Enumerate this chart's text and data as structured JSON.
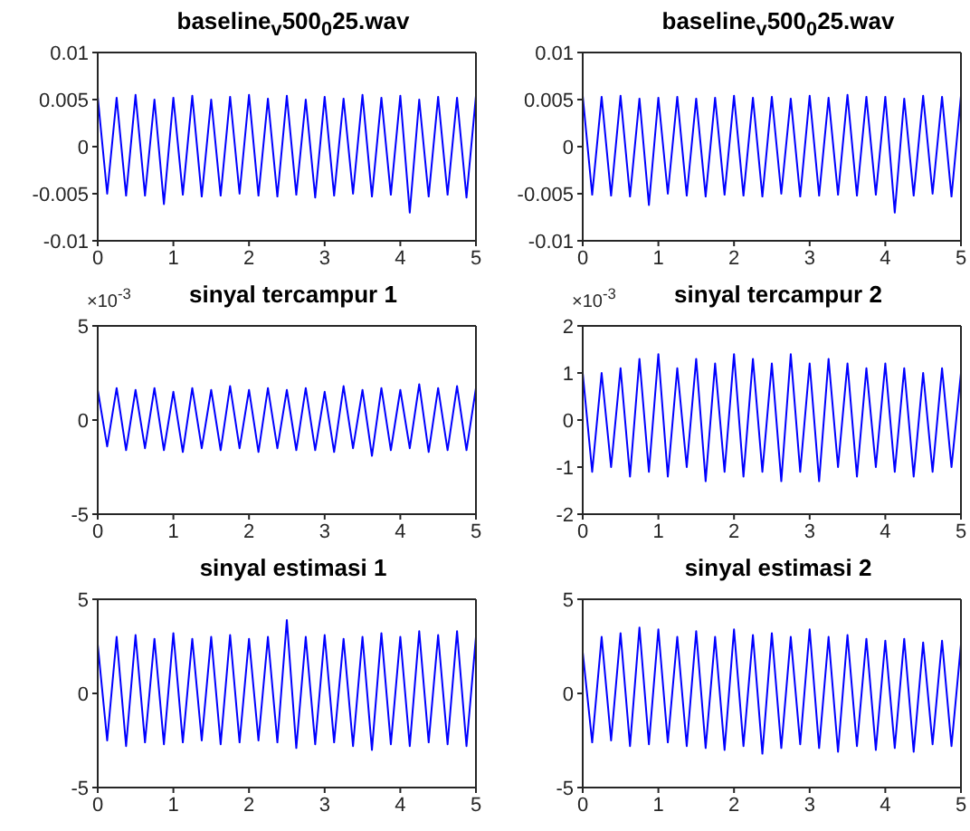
{
  "chart_data": [
    {
      "type": "line",
      "title": "baseline$_{v}$500$_{0}$25.wav",
      "x": [
        0,
        0.125,
        0.25,
        0.375,
        0.5,
        0.625,
        0.75,
        0.875,
        1,
        1.125,
        1.25,
        1.375,
        1.5,
        1.625,
        1.75,
        1.875,
        2,
        2.125,
        2.25,
        2.375,
        2.5,
        2.625,
        2.75,
        2.875,
        3,
        3.125,
        3.25,
        3.375,
        3.5,
        3.625,
        3.75,
        3.875,
        4,
        4.125,
        4.25,
        4.375,
        4.5,
        4.625,
        4.75,
        4.875,
        5
      ],
      "series": [
        {
          "color": "#0000ff",
          "values": [
            0.0053,
            -0.005,
            0.0052,
            -0.0052,
            0.0055,
            -0.0052,
            0.005,
            -0.0061,
            0.0052,
            -0.0051,
            0.0054,
            -0.0053,
            0.005,
            -0.0052,
            0.0053,
            -0.005,
            0.0055,
            -0.0052,
            0.0051,
            -0.0053,
            0.0054,
            -0.0051,
            0.005,
            -0.0054,
            0.0053,
            -0.0052,
            0.0051,
            -0.005,
            0.0055,
            -0.0053,
            0.0052,
            -0.0051,
            0.0054,
            -0.007,
            0.005,
            -0.0053,
            0.0053,
            -0.0051,
            0.0052,
            -0.0054,
            0.0054
          ]
        }
      ],
      "xlim": [
        0,
        5
      ],
      "xticks": [
        0,
        1,
        2,
        3,
        4,
        5
      ],
      "ylim": [
        -0.01,
        0.01
      ],
      "yticks": [
        -0.01,
        -0.005,
        0,
        0.005,
        0.01
      ],
      "grid": false,
      "legend": false,
      "marker": "none",
      "line_style": "solid"
    },
    {
      "type": "line",
      "title": "baseline$_{v}$500$_{0}$25.wav",
      "x": [
        0,
        0.125,
        0.25,
        0.375,
        0.5,
        0.625,
        0.75,
        0.875,
        1,
        1.125,
        1.25,
        1.375,
        1.5,
        1.625,
        1.75,
        1.875,
        2,
        2.125,
        2.25,
        2.375,
        2.5,
        2.625,
        2.75,
        2.875,
        3,
        3.125,
        3.25,
        3.375,
        3.5,
        3.625,
        3.75,
        3.875,
        4,
        4.125,
        4.25,
        4.375,
        4.5,
        4.625,
        4.75,
        4.875,
        5
      ],
      "series": [
        {
          "color": "#0000ff",
          "values": [
            0.0054,
            -0.0051,
            0.0053,
            -0.0052,
            0.0054,
            -0.0053,
            0.0051,
            -0.0062,
            0.0052,
            -0.005,
            0.0053,
            -0.0052,
            0.0051,
            -0.0053,
            0.0052,
            -0.0051,
            0.0054,
            -0.0052,
            0.0052,
            -0.0053,
            0.0053,
            -0.005,
            0.0051,
            -0.0053,
            0.0054,
            -0.0052,
            0.0052,
            -0.0051,
            0.0055,
            -0.0052,
            0.0053,
            -0.0051,
            0.0053,
            -0.007,
            0.0051,
            -0.0052,
            0.0054,
            -0.005,
            0.0053,
            -0.0053,
            0.0054
          ]
        }
      ],
      "xlim": [
        0,
        5
      ],
      "xticks": [
        0,
        1,
        2,
        3,
        4,
        5
      ],
      "ylim": [
        -0.01,
        0.01
      ],
      "yticks": [
        -0.01,
        -0.005,
        0,
        0.005,
        0.01
      ],
      "grid": false,
      "legend": false,
      "marker": "none",
      "line_style": "solid"
    },
    {
      "type": "line",
      "title": "sinyal tercampur 1",
      "annotations": [
        "×10$^{-3}$"
      ],
      "x": [
        0,
        0.125,
        0.25,
        0.375,
        0.5,
        0.625,
        0.75,
        0.875,
        1,
        1.125,
        1.25,
        1.375,
        1.5,
        1.625,
        1.75,
        1.875,
        2,
        2.125,
        2.25,
        2.375,
        2.5,
        2.625,
        2.75,
        2.875,
        3,
        3.125,
        3.25,
        3.375,
        3.5,
        3.625,
        3.75,
        3.875,
        4,
        4.125,
        4.25,
        4.375,
        4.5,
        4.625,
        4.75,
        4.875,
        5
      ],
      "series": [
        {
          "color": "#0000ff",
          "values": [
            1.6,
            -1.4,
            1.7,
            -1.6,
            1.6,
            -1.5,
            1.7,
            -1.6,
            1.5,
            -1.7,
            1.7,
            -1.5,
            1.6,
            -1.6,
            1.8,
            -1.5,
            1.6,
            -1.7,
            1.7,
            -1.5,
            1.6,
            -1.6,
            1.7,
            -1.6,
            1.5,
            -1.7,
            1.8,
            -1.5,
            1.6,
            -1.9,
            1.7,
            -1.6,
            1.6,
            -1.5,
            1.9,
            -1.7,
            1.7,
            -1.6,
            1.8,
            -1.6,
            1.7
          ]
        }
      ],
      "xlim": [
        0,
        5
      ],
      "xticks": [
        0,
        1,
        2,
        3,
        4,
        5
      ],
      "ylim": [
        -5,
        5
      ],
      "yticks": [
        -5,
        0,
        5
      ],
      "grid": false,
      "legend": false,
      "marker": "none",
      "line_style": "solid"
    },
    {
      "type": "line",
      "title": "sinyal tercampur 2",
      "annotations": [
        "×10$^{-3}$"
      ],
      "x": [
        0,
        0.125,
        0.25,
        0.375,
        0.5,
        0.625,
        0.75,
        0.875,
        1,
        1.125,
        1.25,
        1.375,
        1.5,
        1.625,
        1.75,
        1.875,
        2,
        2.125,
        2.25,
        2.375,
        2.5,
        2.625,
        2.75,
        2.875,
        3,
        3.125,
        3.25,
        3.375,
        3.5,
        3.625,
        3.75,
        3.875,
        4,
        4.125,
        4.25,
        4.375,
        4.5,
        4.625,
        4.75,
        4.875,
        5
      ],
      "series": [
        {
          "color": "#0000ff",
          "values": [
            1.0,
            -1.1,
            1.0,
            -1.0,
            1.1,
            -1.2,
            1.3,
            -1.1,
            1.4,
            -1.2,
            1.1,
            -1.0,
            1.3,
            -1.3,
            1.2,
            -1.1,
            1.4,
            -1.2,
            1.3,
            -1.1,
            1.2,
            -1.3,
            1.4,
            -1.1,
            1.2,
            -1.3,
            1.3,
            -1.0,
            1.2,
            -1.2,
            1.1,
            -1.0,
            1.2,
            -1.1,
            1.1,
            -1.2,
            1.0,
            -1.1,
            1.1,
            -1.0,
            1.0
          ]
        }
      ],
      "xlim": [
        0,
        5
      ],
      "xticks": [
        0,
        1,
        2,
        3,
        4,
        5
      ],
      "ylim": [
        -2,
        2
      ],
      "yticks": [
        -2,
        -1,
        0,
        1,
        2
      ],
      "grid": false,
      "legend": false,
      "marker": "none",
      "line_style": "solid"
    },
    {
      "type": "line",
      "title": "sinyal estimasi 1",
      "x": [
        0,
        0.125,
        0.25,
        0.375,
        0.5,
        0.625,
        0.75,
        0.875,
        1,
        1.125,
        1.25,
        1.375,
        1.5,
        1.625,
        1.75,
        1.875,
        2,
        2.125,
        2.25,
        2.375,
        2.5,
        2.625,
        2.75,
        2.875,
        3,
        3.125,
        3.25,
        3.375,
        3.5,
        3.625,
        3.75,
        3.875,
        4,
        4.125,
        4.25,
        4.375,
        4.5,
        4.625,
        4.75,
        4.875,
        5
      ],
      "series": [
        {
          "color": "#0000ff",
          "values": [
            2.6,
            -2.5,
            3.0,
            -2.8,
            3.1,
            -2.6,
            2.9,
            -2.7,
            3.2,
            -2.6,
            2.9,
            -2.5,
            3.0,
            -2.7,
            3.1,
            -2.6,
            2.9,
            -2.5,
            3.0,
            -2.6,
            3.9,
            -2.9,
            3.0,
            -2.7,
            3.1,
            -2.6,
            2.9,
            -2.8,
            3.0,
            -3.0,
            3.2,
            -2.7,
            3.0,
            -2.8,
            3.3,
            -2.6,
            3.1,
            -2.7,
            3.3,
            -2.8,
            3.0
          ]
        }
      ],
      "xlim": [
        0,
        5
      ],
      "xticks": [
        0,
        1,
        2,
        3,
        4,
        5
      ],
      "ylim": [
        -5,
        5
      ],
      "yticks": [
        -5,
        0,
        5
      ],
      "grid": false,
      "legend": false,
      "marker": "none",
      "line_style": "solid"
    },
    {
      "type": "line",
      "title": "sinyal estimasi 2",
      "x": [
        0,
        0.125,
        0.25,
        0.375,
        0.5,
        0.625,
        0.75,
        0.875,
        1,
        1.125,
        1.25,
        1.375,
        1.5,
        1.625,
        1.75,
        1.875,
        2,
        2.125,
        2.25,
        2.375,
        2.5,
        2.625,
        2.75,
        2.875,
        3,
        3.125,
        3.25,
        3.375,
        3.5,
        3.625,
        3.75,
        3.875,
        4,
        4.125,
        4.25,
        4.375,
        4.5,
        4.625,
        4.75,
        4.875,
        5
      ],
      "series": [
        {
          "color": "#0000ff",
          "values": [
            2.2,
            -2.6,
            3.0,
            -2.5,
            3.2,
            -2.8,
            3.5,
            -2.7,
            3.4,
            -2.6,
            3.0,
            -2.8,
            3.3,
            -2.9,
            3.0,
            -3.0,
            3.4,
            -2.8,
            3.1,
            -3.2,
            3.2,
            -2.9,
            3.0,
            -2.7,
            3.4,
            -2.9,
            3.0,
            -3.1,
            3.1,
            -2.8,
            2.9,
            -3.0,
            2.8,
            -2.9,
            2.9,
            -3.1,
            2.7,
            -2.7,
            2.8,
            -2.8,
            2.6
          ]
        }
      ],
      "xlim": [
        0,
        5
      ],
      "xticks": [
        0,
        1,
        2,
        3,
        4,
        5
      ],
      "ylim": [
        -5,
        5
      ],
      "yticks": [
        -5,
        0,
        5
      ],
      "grid": false,
      "legend": false,
      "marker": "none",
      "line_style": "solid"
    }
  ]
}
